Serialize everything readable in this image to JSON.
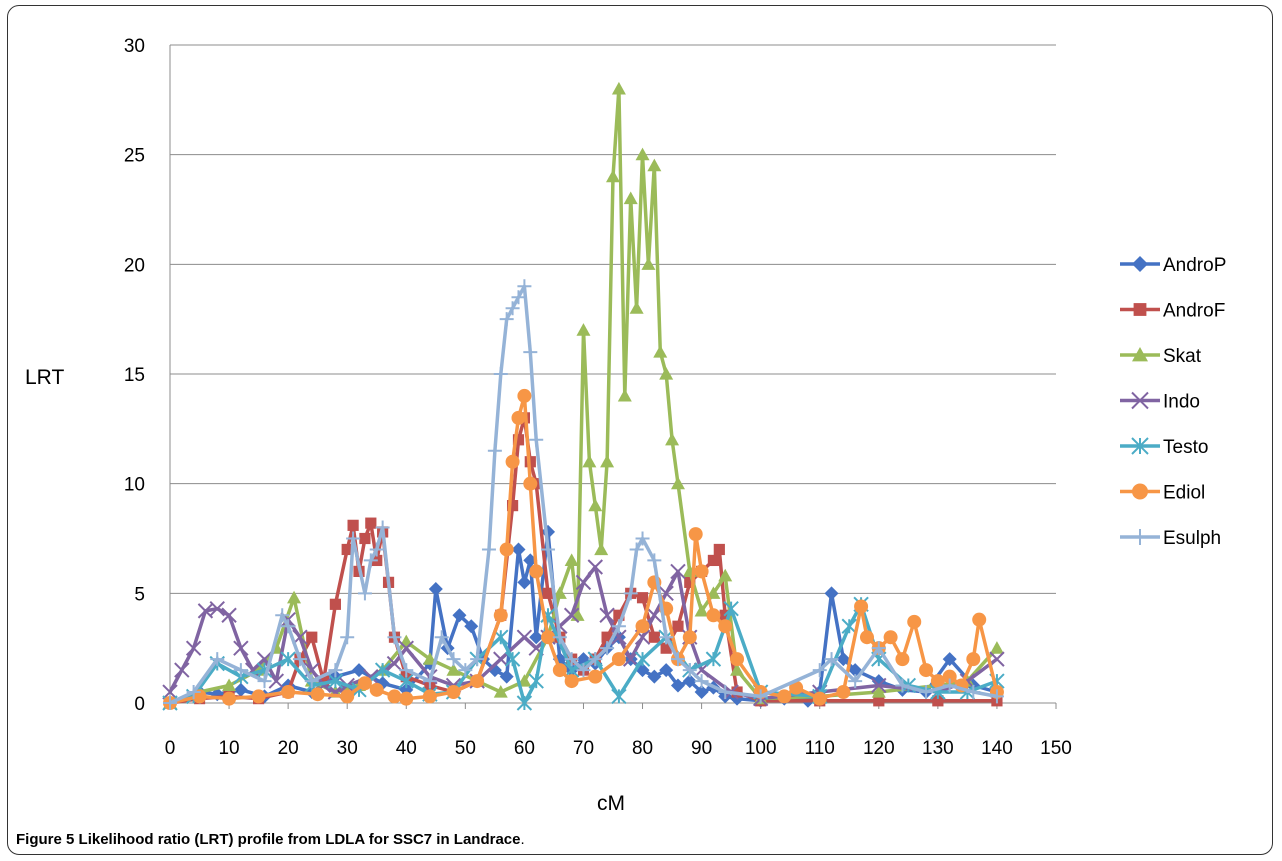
{
  "caption": {
    "label": "Figure 5",
    "text": "Likelihood ratio (LRT) profile from LDLA for SSC7 in Landrace",
    "period": "."
  },
  "chart_data": {
    "type": "line",
    "title": "",
    "xlabel": "cM",
    "ylabel": "LRT",
    "xlim": [
      0,
      150
    ],
    "ylim": [
      0,
      30
    ],
    "xticks": [
      "0",
      "10",
      "20",
      "30",
      "40",
      "50",
      "60",
      "70",
      "80",
      "90",
      "100",
      "110",
      "120",
      "130",
      "140",
      "150"
    ],
    "yticks": [
      "0",
      "5",
      "10",
      "15",
      "20",
      "25",
      "30"
    ],
    "grid": "horizontal",
    "legend_position": "right",
    "series": [
      {
        "name": "AndroP",
        "color": "#4472C4",
        "marker": "diamond",
        "x": [
          0,
          5,
          8,
          12,
          16,
          20,
          24,
          28,
          32,
          36,
          40,
          44,
          45,
          47,
          49,
          51,
          53,
          55,
          57,
          59,
          60,
          61,
          62,
          64,
          66,
          68,
          70,
          72,
          74,
          76,
          78,
          80,
          82,
          84,
          86,
          88,
          90,
          92,
          94,
          96,
          100,
          104,
          108,
          110,
          112,
          114,
          116,
          120,
          124,
          128,
          132,
          136,
          140
        ],
        "y": [
          0,
          0.5,
          0.4,
          0.6,
          0.3,
          0.8,
          0.5,
          1.2,
          1.5,
          0.9,
          0.6,
          1.8,
          5.2,
          2.5,
          4,
          3.5,
          2,
          1.5,
          1.2,
          7,
          5.5,
          6.5,
          3,
          7.8,
          2,
          1.5,
          2,
          1.8,
          2.5,
          3,
          2,
          1.5,
          1.2,
          1.5,
          0.8,
          1,
          0.5,
          0.7,
          0.3,
          0.2,
          0.1,
          0.2,
          0.1,
          0.5,
          5,
          2,
          1.5,
          1,
          0.6,
          0.5,
          2,
          0.8,
          0.5
        ]
      },
      {
        "name": "AndroF",
        "color": "#C0504D",
        "marker": "square",
        "x": [
          0,
          5,
          10,
          15,
          20,
          22,
          24,
          26,
          28,
          30,
          31,
          32,
          33,
          34,
          35,
          36,
          37,
          38,
          40,
          44,
          48,
          52,
          56,
          58,
          59,
          60,
          61,
          62,
          64,
          66,
          68,
          70,
          72,
          74,
          76,
          78,
          80,
          82,
          84,
          86,
          88,
          90,
          92,
          93,
          94,
          96,
          100,
          110,
          120,
          130,
          140
        ],
        "y": [
          0,
          0.2,
          0.3,
          0.2,
          0.5,
          2,
          3,
          1,
          4.5,
          7,
          8.1,
          6,
          7.5,
          8.2,
          6.5,
          7.8,
          5.5,
          3,
          1.2,
          0.8,
          0.5,
          1,
          4,
          9,
          12,
          13,
          11,
          10,
          5,
          3,
          2,
          1.5,
          2,
          3,
          4,
          5,
          4.8,
          3,
          2.5,
          3.5,
          5.5,
          6,
          6.5,
          7,
          4,
          0.5,
          0.1,
          0.1,
          0.1,
          0.1,
          0.1
        ]
      },
      {
        "name": "Skat",
        "color": "#9BBB59",
        "marker": "triangle",
        "x": [
          0,
          5,
          10,
          15,
          18,
          21,
          24,
          28,
          32,
          36,
          40,
          44,
          48,
          52,
          56,
          60,
          64,
          66,
          68,
          69,
          70,
          71,
          72,
          73,
          74,
          75,
          76,
          77,
          78,
          79,
          80,
          81,
          82,
          83,
          84,
          85,
          86,
          88,
          90,
          92,
          94,
          96,
          100,
          110,
          120,
          130,
          135,
          140
        ],
        "y": [
          0,
          0.5,
          0.8,
          1.5,
          2.5,
          4.8,
          1,
          0.5,
          0.8,
          1.5,
          2.8,
          2,
          1.5,
          1,
          0.5,
          1,
          3,
          5,
          6.5,
          4,
          17,
          11,
          9,
          7,
          11,
          24,
          28,
          14,
          23,
          18,
          25,
          20,
          24.5,
          16,
          15,
          12,
          10,
          6,
          4.2,
          5,
          5.8,
          1.5,
          0.2,
          0.3,
          0.5,
          0.8,
          1,
          2.5
        ]
      },
      {
        "name": "Indo",
        "color": "#8064A2",
        "marker": "x",
        "x": [
          0,
          2,
          4,
          6,
          8,
          10,
          12,
          14,
          16,
          18,
          20,
          22,
          24,
          26,
          28,
          30,
          34,
          38,
          40,
          44,
          48,
          52,
          56,
          60,
          62,
          64,
          66,
          68,
          70,
          72,
          74,
          76,
          78,
          80,
          82,
          84,
          86,
          88,
          90,
          95,
          100,
          110,
          120,
          130,
          135,
          140
        ],
        "y": [
          0.5,
          1.5,
          2.5,
          4.2,
          4.3,
          4,
          2.5,
          1.5,
          2,
          1,
          3.8,
          3,
          1.5,
          0.8,
          0.5,
          0.8,
          1.2,
          1.8,
          2.5,
          1.2,
          0.8,
          1,
          2,
          3,
          2.5,
          3,
          3.5,
          4,
          5.5,
          6.2,
          4,
          3,
          2,
          3,
          4,
          5,
          6,
          3,
          1.5,
          0.5,
          0.2,
          0.5,
          0.8,
          0.5,
          1,
          2
        ]
      },
      {
        "name": "Testo",
        "color": "#4BACC6",
        "marker": "asterisk",
        "x": [
          0,
          4,
          8,
          12,
          16,
          20,
          24,
          28,
          32,
          36,
          40,
          44,
          48,
          52,
          56,
          58,
          60,
          62,
          64,
          68,
          72,
          76,
          80,
          84,
          88,
          92,
          95,
          100,
          110,
          115,
          117,
          120,
          125,
          130,
          135,
          140
        ],
        "y": [
          0,
          0.3,
          1.8,
          1.2,
          1.5,
          2,
          0.8,
          1,
          0.6,
          1.5,
          1,
          0.4,
          0.5,
          2,
          3,
          2,
          0,
          1,
          4,
          1.5,
          2,
          0.3,
          2,
          3,
          1.5,
          2,
          4.3,
          0.5,
          0.3,
          3.5,
          4.5,
          2,
          0.8,
          0.5,
          0.5,
          1
        ]
      },
      {
        "name": "Ediol",
        "color": "#F79646",
        "marker": "circle",
        "x": [
          0,
          5,
          10,
          15,
          20,
          25,
          30,
          33,
          35,
          38,
          40,
          44,
          48,
          52,
          56,
          57,
          58,
          59,
          60,
          61,
          62,
          64,
          66,
          68,
          72,
          76,
          80,
          82,
          84,
          86,
          88,
          89,
          90,
          92,
          94,
          96,
          100,
          104,
          106,
          110,
          114,
          117,
          118,
          120,
          122,
          124,
          126,
          128,
          130,
          132,
          134,
          136,
          137,
          140
        ],
        "y": [
          0,
          0.3,
          0.2,
          0.3,
          0.5,
          0.4,
          0.3,
          0.9,
          0.6,
          0.3,
          0.2,
          0.3,
          0.5,
          1,
          4,
          7,
          11,
          13,
          14,
          10,
          6,
          3,
          1.5,
          1,
          1.2,
          2,
          3.5,
          5.5,
          4.3,
          2,
          3,
          7.7,
          6,
          4,
          3.5,
          2,
          0.5,
          0.3,
          0.7,
          0.2,
          0.5,
          4.4,
          3,
          2.5,
          3,
          2,
          3.7,
          1.5,
          1,
          1.2,
          0.8,
          2,
          3.8,
          0.5
        ]
      },
      {
        "name": "Esulph",
        "color": "#95B3D7",
        "marker": "plus",
        "x": [
          0,
          4,
          8,
          12,
          16,
          19,
          20,
          22,
          24,
          28,
          30,
          31,
          33,
          34,
          35,
          36,
          38,
          40,
          44,
          46,
          48,
          50,
          52,
          54,
          55,
          56,
          57,
          58,
          59,
          60,
          61,
          62,
          64,
          66,
          68,
          70,
          72,
          74,
          76,
          78,
          79,
          80,
          82,
          84,
          86,
          88,
          90,
          94,
          100,
          110,
          112,
          116,
          120,
          124,
          128,
          132,
          136,
          140
        ],
        "y": [
          0,
          0.5,
          2,
          1.5,
          1,
          4,
          3.5,
          2,
          1,
          1.5,
          3,
          7.5,
          5,
          6.5,
          7,
          8,
          3,
          1.5,
          1,
          3,
          2,
          1.5,
          2,
          7,
          11.5,
          15,
          17.5,
          18,
          18.5,
          19,
          16,
          12,
          7,
          3,
          2,
          1.5,
          2,
          2.5,
          3.5,
          5,
          7,
          7.5,
          6.5,
          3,
          2,
          1.5,
          1,
          0.5,
          0.3,
          1.5,
          2,
          1,
          2.5,
          0.8,
          0.5,
          0.8,
          0.5,
          0.3
        ]
      }
    ]
  }
}
